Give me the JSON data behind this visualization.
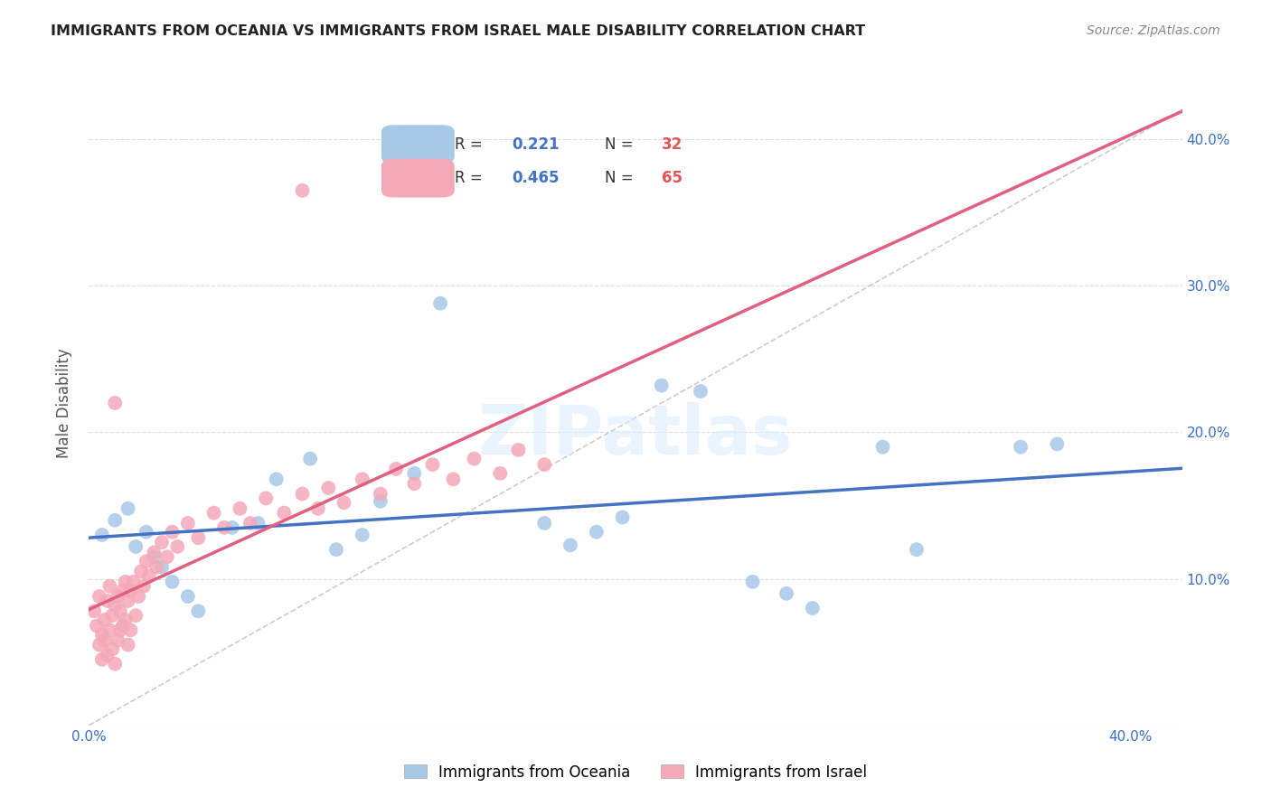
{
  "title": "IMMIGRANTS FROM OCEANIA VS IMMIGRANTS FROM ISRAEL MALE DISABILITY CORRELATION CHART",
  "source": "Source: ZipAtlas.com",
  "ylabel": "Male Disability",
  "xlim": [
    0.0,
    0.42
  ],
  "ylim": [
    0.0,
    0.44
  ],
  "blue_color": "#a8c8e8",
  "pink_color": "#f4a8b8",
  "blue_line_color": "#4472c4",
  "pink_line_color": "#e06080",
  "diagonal_color": "#cccccc",
  "R_blue": 0.221,
  "N_blue": 32,
  "R_pink": 0.465,
  "N_pink": 65,
  "legend_label_blue": "Immigrants from Oceania",
  "legend_label_pink": "Immigrants from Israel",
  "oceania_x": [
    0.005,
    0.01,
    0.015,
    0.018,
    0.022,
    0.025,
    0.028,
    0.032,
    0.038,
    0.042,
    0.055,
    0.065,
    0.072,
    0.085,
    0.095,
    0.105,
    0.112,
    0.125,
    0.135,
    0.175,
    0.185,
    0.195,
    0.205,
    0.22,
    0.235,
    0.255,
    0.268,
    0.278,
    0.305,
    0.318,
    0.358,
    0.372
  ],
  "oceania_y": [
    0.13,
    0.14,
    0.148,
    0.122,
    0.132,
    0.115,
    0.108,
    0.098,
    0.088,
    0.078,
    0.135,
    0.138,
    0.168,
    0.182,
    0.12,
    0.13,
    0.153,
    0.172,
    0.288,
    0.138,
    0.123,
    0.132,
    0.142,
    0.232,
    0.228,
    0.098,
    0.09,
    0.08,
    0.19,
    0.12,
    0.19,
    0.192
  ],
  "israel_x": [
    0.002,
    0.003,
    0.004,
    0.004,
    0.005,
    0.005,
    0.006,
    0.006,
    0.007,
    0.007,
    0.008,
    0.008,
    0.009,
    0.009,
    0.01,
    0.01,
    0.011,
    0.011,
    0.012,
    0.012,
    0.013,
    0.013,
    0.014,
    0.014,
    0.015,
    0.015,
    0.016,
    0.016,
    0.017,
    0.018,
    0.019,
    0.02,
    0.021,
    0.022,
    0.023,
    0.025,
    0.026,
    0.028,
    0.03,
    0.032,
    0.034,
    0.038,
    0.042,
    0.048,
    0.052,
    0.058,
    0.062,
    0.068,
    0.075,
    0.082,
    0.088,
    0.092,
    0.098,
    0.105,
    0.112,
    0.118,
    0.125,
    0.132,
    0.14,
    0.148,
    0.158,
    0.165,
    0.175,
    0.082,
    0.01
  ],
  "israel_y": [
    0.078,
    0.068,
    0.055,
    0.088,
    0.062,
    0.045,
    0.072,
    0.058,
    0.085,
    0.048,
    0.095,
    0.065,
    0.075,
    0.052,
    0.082,
    0.042,
    0.088,
    0.058,
    0.078,
    0.065,
    0.092,
    0.068,
    0.098,
    0.072,
    0.085,
    0.055,
    0.092,
    0.065,
    0.098,
    0.075,
    0.088,
    0.105,
    0.095,
    0.112,
    0.102,
    0.118,
    0.108,
    0.125,
    0.115,
    0.132,
    0.122,
    0.138,
    0.128,
    0.145,
    0.135,
    0.148,
    0.138,
    0.155,
    0.145,
    0.158,
    0.148,
    0.162,
    0.152,
    0.168,
    0.158,
    0.175,
    0.165,
    0.178,
    0.168,
    0.182,
    0.172,
    0.188,
    0.178,
    0.365,
    0.22
  ],
  "blue_line_x0": 0.0,
  "blue_line_y0": 0.14,
  "blue_line_x1": 0.4,
  "blue_line_y1": 0.2,
  "pink_line_x0": 0.0,
  "pink_line_y0": 0.048,
  "pink_line_x1": 0.18,
  "pink_line_y1": 0.255
}
